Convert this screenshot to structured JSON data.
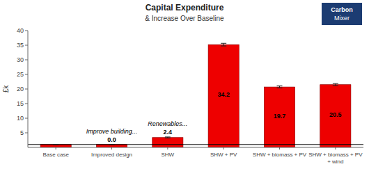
{
  "chart_data": {
    "type": "bar",
    "stacked": true,
    "title": "Capital Expenditure",
    "subtitle": "& Increase Over Baseline",
    "y_label": "£k",
    "categories": [
      "Base case",
      "Improved design",
      "SHW",
      "SHW + PV",
      "SHW + biomass + PV",
      "SHW + biomass + PV\n+ wind"
    ],
    "color": "#ee0000",
    "series": [
      {
        "values": [
          1.0,
          1.0,
          1.0,
          1.0,
          1.0,
          1.0
        ]
      },
      {
        "values": [
          0.0,
          0.0,
          2.4,
          34.2,
          19.7,
          20.5
        ],
        "errors": [
          0.07,
          0.07,
          0.18,
          0.45,
          0.35,
          0.35
        ],
        "value_labels": [
          null,
          "0.0",
          "2.4",
          "34.2",
          "19.7",
          "20.5"
        ]
      }
    ],
    "data_labels": true,
    "annotations": [
      null,
      "Improve building...",
      "Renewables...",
      null,
      null,
      null
    ],
    "reference_line": 1.0,
    "ylim": [
      0,
      40
    ],
    "yticks": [
      5,
      10,
      15,
      20,
      25,
      30,
      35,
      40
    ],
    "grid": false,
    "logo": {
      "lines": [
        "Carbon",
        "Mixer"
      ],
      "color": "#1c3c72"
    }
  }
}
